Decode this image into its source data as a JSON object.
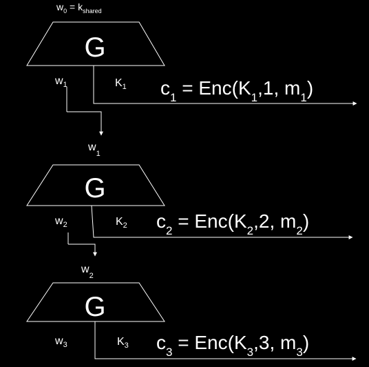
{
  "diagram": {
    "background": "#000000",
    "foreground": "#ffffff",
    "initial_state": {
      "lhs": "w",
      "lhs_sub": "0",
      "eq": " = ",
      "rhs": "k",
      "rhs_sub": "shared"
    },
    "stages": [
      {
        "block_label": "G",
        "out_w": {
          "base": "w",
          "sub": "1"
        },
        "out_k": {
          "base": "K",
          "sub": "1"
        },
        "input_w": {
          "base": "w",
          "sub": "1"
        },
        "equation": {
          "c": "c",
          "c_sub": "1",
          "mid": " = Enc(K",
          "k_sub": "1",
          "tail": ",1, m",
          "m_sub": "1",
          "close": ")"
        }
      },
      {
        "block_label": "G",
        "out_w": {
          "base": "w",
          "sub": "2"
        },
        "out_k": {
          "base": "K",
          "sub": "2"
        },
        "input_w": {
          "base": "w",
          "sub": "2"
        },
        "equation": {
          "c": "c",
          "c_sub": "2",
          "mid": " = Enc(K",
          "k_sub": "2",
          "tail": ",2, m",
          "m_sub": "2",
          "close": ")"
        }
      },
      {
        "block_label": "G",
        "out_w": {
          "base": "w",
          "sub": "3"
        },
        "out_k": {
          "base": "K",
          "sub": "3"
        },
        "equation": {
          "c": "c",
          "c_sub": "3",
          "mid": " = Enc(K",
          "k_sub": "3",
          "tail": ",3, m",
          "m_sub": "3",
          "close": ")"
        }
      }
    ]
  }
}
